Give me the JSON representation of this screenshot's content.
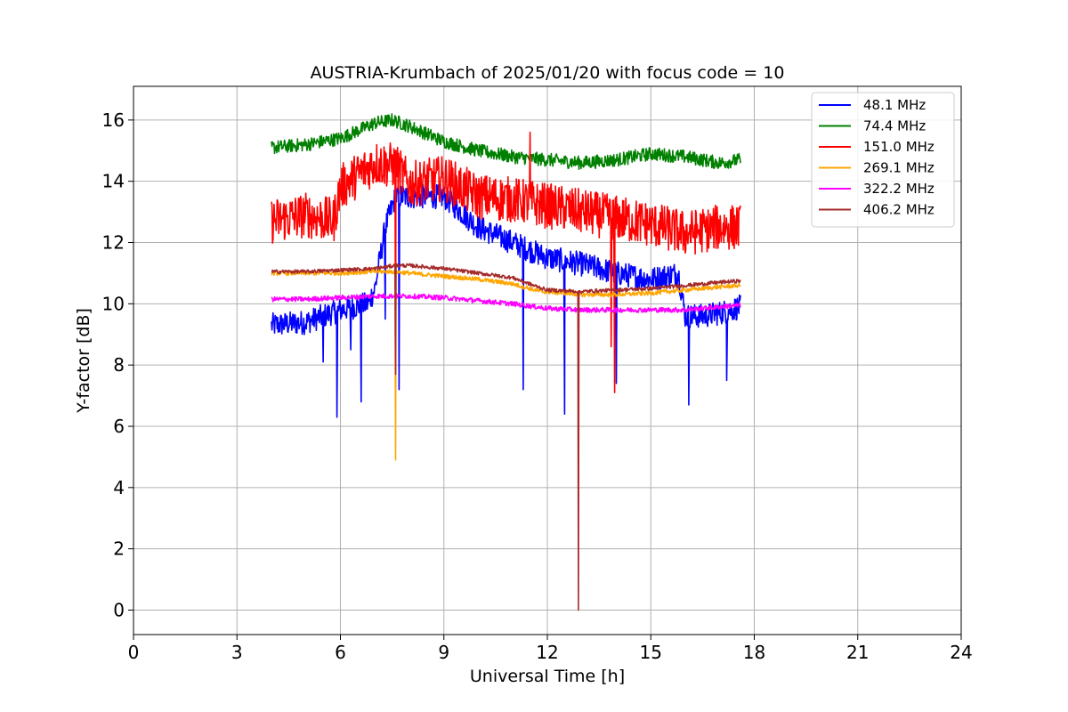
{
  "chart_data": {
    "type": "line",
    "title": "AUSTRIA-Krumbach of 2025/01/20 with focus code = 10",
    "xlabel": "Universal Time [h]",
    "ylabel": "Y-factor [dB]",
    "xlim": [
      0,
      24
    ],
    "ylim": [
      -0.8,
      17.1
    ],
    "xticks": [
      0,
      3,
      6,
      9,
      12,
      15,
      18,
      21,
      24
    ],
    "yticks": [
      0,
      2,
      4,
      6,
      8,
      10,
      12,
      14,
      16
    ],
    "grid": true,
    "legend": "top-right",
    "series": [
      {
        "name": " 48.1 MHz",
        "color": "#0000ff",
        "noise": 0.4,
        "x": [
          4.0,
          5.0,
          6.0,
          6.8,
          7.0,
          7.3,
          7.6,
          8.0,
          8.5,
          9.0,
          9.5,
          10.0,
          11.0,
          12.0,
          13.0,
          14.0,
          15.0,
          15.8,
          16.0,
          16.5,
          17.0,
          17.6
        ],
        "y": [
          9.3,
          9.4,
          9.8,
          10.0,
          10.5,
          12.5,
          13.5,
          13.5,
          13.5,
          13.5,
          13.0,
          12.5,
          12.0,
          11.5,
          11.3,
          11.0,
          10.8,
          11.0,
          9.6,
          9.6,
          9.7,
          9.9
        ],
        "spikes": [
          [
            5.9,
            6.3
          ],
          [
            6.6,
            6.8
          ],
          [
            7.3,
            9.5
          ],
          [
            7.7,
            7.2
          ],
          [
            11.3,
            7.2
          ],
          [
            12.5,
            6.4
          ],
          [
            14.0,
            7.4
          ],
          [
            16.1,
            6.7
          ],
          [
            17.2,
            7.5
          ],
          [
            5.5,
            8.1
          ],
          [
            6.3,
            8.5
          ]
        ]
      },
      {
        "name": " 74.4 MHz",
        "color": "#008000",
        "noise": 0.22,
        "x": [
          4.0,
          5.0,
          6.0,
          7.0,
          7.5,
          8.0,
          9.0,
          10.0,
          11.0,
          12.0,
          13.0,
          14.0,
          15.0,
          16.0,
          17.0,
          17.6
        ],
        "y": [
          15.1,
          15.2,
          15.4,
          15.9,
          16.0,
          15.8,
          15.3,
          15.0,
          14.8,
          14.7,
          14.6,
          14.7,
          14.9,
          14.8,
          14.6,
          14.7
        ],
        "spikes": []
      },
      {
        "name": " 151.0 MHz",
        "color": "#ff0000",
        "noise": 0.75,
        "x": [
          4.0,
          5.0,
          5.8,
          6.0,
          7.0,
          7.6,
          8.0,
          9.0,
          10.0,
          11.0,
          12.0,
          13.0,
          14.0,
          15.0,
          16.0,
          17.0,
          17.6
        ],
        "y": [
          12.7,
          12.9,
          12.7,
          13.8,
          14.6,
          14.5,
          13.9,
          14.1,
          13.5,
          13.4,
          13.2,
          13.0,
          12.8,
          12.6,
          12.3,
          12.5,
          12.5
        ],
        "spikes": [
          [
            13.85,
            8.6
          ],
          [
            13.95,
            7.1
          ],
          [
            11.5,
            15.6
          ],
          [
            7.6,
            8.0
          ]
        ]
      },
      {
        "name": " 269.1 MHz",
        "color": "#ffa500",
        "noise": 0.07,
        "x": [
          4.0,
          5.0,
          6.0,
          7.0,
          7.6,
          8.0,
          9.0,
          10.0,
          11.0,
          11.8,
          12.5,
          13.0,
          14.0,
          15.0,
          16.0,
          17.0,
          17.6
        ],
        "y": [
          11.0,
          11.0,
          11.0,
          11.05,
          11.05,
          11.0,
          10.9,
          10.8,
          10.65,
          10.4,
          10.35,
          10.3,
          10.3,
          10.35,
          10.45,
          10.55,
          10.6
        ],
        "spikes": [
          [
            7.6,
            4.9
          ]
        ]
      },
      {
        "name": " 322.2 MHz",
        "color": "#ff00ff",
        "noise": 0.08,
        "x": [
          4.0,
          5.0,
          6.0,
          7.0,
          8.0,
          9.0,
          10.0,
          11.0,
          12.0,
          13.0,
          14.0,
          15.0,
          16.0,
          17.0,
          17.6
        ],
        "y": [
          10.15,
          10.15,
          10.2,
          10.25,
          10.25,
          10.2,
          10.1,
          10.0,
          9.85,
          9.8,
          9.8,
          9.8,
          9.8,
          9.9,
          9.95
        ],
        "spikes": []
      },
      {
        "name": " 406.2 MHz",
        "color": "#a52a2a",
        "noise": 0.06,
        "x": [
          4.0,
          5.0,
          6.0,
          7.0,
          7.6,
          8.0,
          9.0,
          10.0,
          11.0,
          11.6,
          12.0,
          13.0,
          14.0,
          15.0,
          16.0,
          17.0,
          17.6
        ],
        "y": [
          11.05,
          11.05,
          11.1,
          11.15,
          11.25,
          11.25,
          11.15,
          11.0,
          10.85,
          10.6,
          10.45,
          10.4,
          10.45,
          10.5,
          10.6,
          10.7,
          10.75
        ],
        "spikes": [
          [
            12.9,
            0.0
          ],
          [
            7.6,
            7.7
          ]
        ]
      }
    ]
  }
}
